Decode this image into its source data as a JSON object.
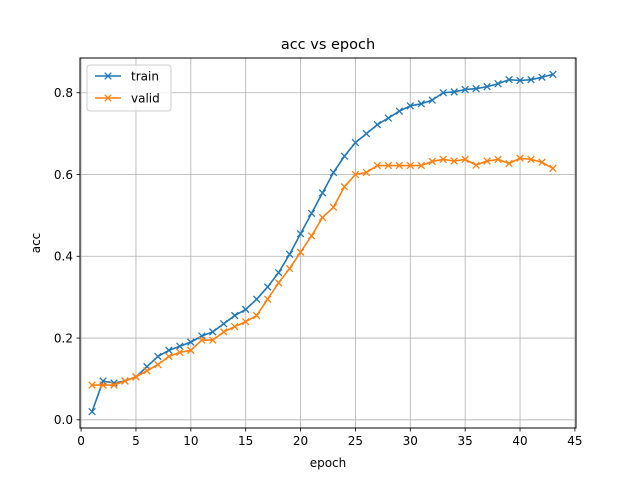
{
  "chart_data": {
    "type": "line",
    "title": "acc vs epoch",
    "xlabel": "epoch",
    "ylabel": "acc",
    "xlim": [
      -0.1,
      45.1
    ],
    "ylim": [
      -0.02,
      0.885
    ],
    "xticks": [
      0,
      5,
      10,
      15,
      20,
      25,
      30,
      35,
      40,
      45
    ],
    "yticks": [
      0.0,
      0.2,
      0.4,
      0.6,
      0.8
    ],
    "grid": true,
    "legend": "top-left",
    "x": [
      1,
      2,
      3,
      4,
      5,
      6,
      7,
      8,
      9,
      10,
      11,
      12,
      13,
      14,
      15,
      16,
      17,
      18,
      19,
      20,
      21,
      22,
      23,
      24,
      25,
      26,
      27,
      28,
      29,
      30,
      31,
      32,
      33,
      34,
      35,
      36,
      37,
      38,
      39,
      40,
      41,
      42,
      43
    ],
    "series": [
      {
        "name": "train",
        "color": "#1f77b4",
        "marker": "x",
        "values": [
          0.02,
          0.095,
          0.09,
          0.095,
          0.105,
          0.13,
          0.155,
          0.17,
          0.18,
          0.19,
          0.205,
          0.215,
          0.235,
          0.255,
          0.27,
          0.295,
          0.325,
          0.36,
          0.405,
          0.455,
          0.505,
          0.555,
          0.605,
          0.645,
          0.678,
          0.7,
          0.722,
          0.738,
          0.755,
          0.768,
          0.773,
          0.782,
          0.8,
          0.802,
          0.808,
          0.81,
          0.815,
          0.822,
          0.832,
          0.83,
          0.832,
          0.838,
          0.845
        ]
      },
      {
        "name": "valid",
        "color": "#ff7f0e",
        "marker": "x",
        "values": [
          0.085,
          0.085,
          0.085,
          0.095,
          0.105,
          0.12,
          0.135,
          0.155,
          0.165,
          0.17,
          0.195,
          0.195,
          0.215,
          0.228,
          0.24,
          0.255,
          0.295,
          0.335,
          0.37,
          0.41,
          0.45,
          0.495,
          0.52,
          0.57,
          0.6,
          0.605,
          0.622,
          0.622,
          0.622,
          0.622,
          0.622,
          0.632,
          0.637,
          0.633,
          0.637,
          0.623,
          0.633,
          0.637,
          0.627,
          0.64,
          0.637,
          0.63,
          0.615
        ]
      }
    ]
  }
}
